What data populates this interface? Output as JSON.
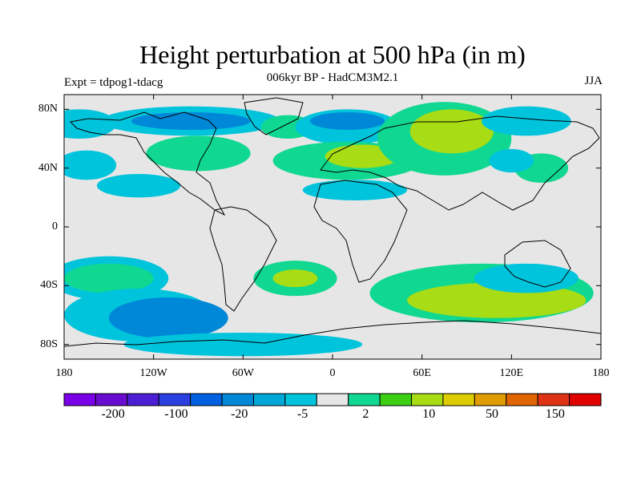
{
  "header": {
    "title": "Height perturbation at 500 hPa (in m)",
    "subtitle": "006kyr BP - HadCM3M2.1",
    "expt": "Expt = tdpog1-tdacg",
    "season": "JJA"
  },
  "axes": {
    "lat_labels": [
      "80N",
      "40N",
      "0",
      "40S",
      "80S"
    ],
    "lat_values": [
      80,
      40,
      0,
      -40,
      -80
    ],
    "lon_labels": [
      "180",
      "120W",
      "60W",
      "0",
      "60E",
      "120E",
      "180"
    ],
    "lon_values": [
      -180,
      -120,
      -60,
      0,
      60,
      120,
      180
    ]
  },
  "colorbar": {
    "colors": [
      "#7a00e8",
      "#6a0ccf",
      "#4d1fd4",
      "#2a3fe0",
      "#0060e0",
      "#0088d8",
      "#00a8d8",
      "#00c4dc",
      "#e6e6e6",
      "#10d890",
      "#3ccf14",
      "#a8dc14",
      "#dccc00",
      "#e09c00",
      "#e06400",
      "#e03214",
      "#e00000"
    ],
    "labels": [
      "-200",
      "-100",
      "-20",
      "-5",
      "2",
      "10",
      "50",
      "150"
    ]
  },
  "chart_data": {
    "type": "filled-contour-map",
    "title": "Height perturbation at 500 hPa (in m)",
    "subtitle": "006kyr BP - HadCM3M2.1",
    "experiment": "Expt = tdpog1-tdacg",
    "season": "JJA",
    "xlim": [
      -180,
      180
    ],
    "ylim": [
      -90,
      90
    ],
    "regions": [
      {
        "lon": -170,
        "lat": 70,
        "rx": 25,
        "ry": 10,
        "level": "-5"
      },
      {
        "lon": -95,
        "lat": 72,
        "rx": 60,
        "ry": 10,
        "level": "-5"
      },
      {
        "lon": -95,
        "lat": 72,
        "rx": 40,
        "ry": 6,
        "level": "-20"
      },
      {
        "lon": -165,
        "lat": 42,
        "rx": 20,
        "ry": 10,
        "level": "-5"
      },
      {
        "lon": -90,
        "lat": 50,
        "rx": 35,
        "ry": 12,
        "level": "2"
      },
      {
        "lon": -130,
        "lat": 28,
        "rx": 28,
        "ry": 8,
        "level": "-5"
      },
      {
        "lon": -30,
        "lat": 68,
        "rx": 18,
        "ry": 8,
        "level": "2"
      },
      {
        "lon": 10,
        "lat": 68,
        "rx": 35,
        "ry": 12,
        "level": "-5"
      },
      {
        "lon": 10,
        "lat": 72,
        "rx": 25,
        "ry": 6,
        "level": "-20"
      },
      {
        "lon": 10,
        "lat": 45,
        "rx": 50,
        "ry": 13,
        "level": "2"
      },
      {
        "lon": 20,
        "lat": 48,
        "rx": 25,
        "ry": 8,
        "level": "10"
      },
      {
        "lon": 15,
        "lat": 25,
        "rx": 35,
        "ry": 7,
        "level": "-5"
      },
      {
        "lon": 75,
        "lat": 60,
        "rx": 45,
        "ry": 25,
        "level": "2"
      },
      {
        "lon": 80,
        "lat": 65,
        "rx": 28,
        "ry": 15,
        "level": "10"
      },
      {
        "lon": 130,
        "lat": 72,
        "rx": 30,
        "ry": 10,
        "level": "-5"
      },
      {
        "lon": 140,
        "lat": 40,
        "rx": 18,
        "ry": 10,
        "level": "2"
      },
      {
        "lon": 120,
        "lat": 45,
        "rx": 15,
        "ry": 8,
        "level": "-5"
      },
      {
        "lon": -150,
        "lat": -35,
        "rx": 40,
        "ry": 15,
        "level": "-5"
      },
      {
        "lon": -150,
        "lat": -35,
        "rx": 30,
        "ry": 10,
        "level": "2"
      },
      {
        "lon": -130,
        "lat": -60,
        "rx": 50,
        "ry": 18,
        "level": "-5"
      },
      {
        "lon": -110,
        "lat": -62,
        "rx": 40,
        "ry": 14,
        "level": "-20"
      },
      {
        "lon": -25,
        "lat": -35,
        "rx": 28,
        "ry": 12,
        "level": "2"
      },
      {
        "lon": -25,
        "lat": -35,
        "rx": 15,
        "ry": 6,
        "level": "10"
      },
      {
        "lon": 100,
        "lat": -45,
        "rx": 75,
        "ry": 20,
        "level": "2"
      },
      {
        "lon": 110,
        "lat": -50,
        "rx": 60,
        "ry": 12,
        "level": "10"
      },
      {
        "lon": 130,
        "lat": -35,
        "rx": 35,
        "ry": 10,
        "level": "-5"
      },
      {
        "lon": -60,
        "lat": -80,
        "rx": 80,
        "ry": 8,
        "level": "-5"
      }
    ]
  }
}
